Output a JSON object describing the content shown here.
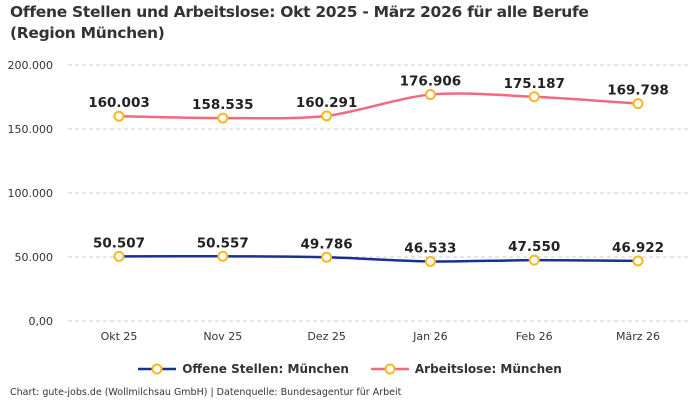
{
  "title": "Offene Stellen und Arbeitslose: Okt 2025 - März 2026 für alle Berufe (Region München)",
  "source": "Chart: gute-jobs.de (Wollmilchsau GmbH) | Datenquelle: Bundesagentur für Arbeit",
  "chart_data": {
    "type": "line",
    "title": "Offene Stellen und Arbeitslose: Okt 2025 - März 2026 für alle Berufe (Region München)",
    "categories": [
      "Okt 25",
      "Nov 25",
      "Dez 25",
      "Jan 26",
      "Feb 26",
      "März 26"
    ],
    "ylim": [
      0,
      200000
    ],
    "yticks": [
      0,
      50000,
      100000,
      150000,
      200000
    ],
    "ytick_labels": [
      "0,00",
      "50.000",
      "100.000",
      "150.000",
      "200.000"
    ],
    "grid": true,
    "legend_position": "bottom",
    "marker_color": "#f5b921",
    "series": [
      {
        "name": "Offene Stellen: München",
        "color": "#1a2f8f",
        "values": [
          50507,
          50557,
          49786,
          46533,
          47550,
          46922
        ],
        "labels": [
          "50.507",
          "50.557",
          "49.786",
          "46.533",
          "47.550",
          "46.922"
        ]
      },
      {
        "name": "Arbeitslose: München",
        "color": "#f2687e",
        "values": [
          160003,
          158535,
          160291,
          176906,
          175187,
          169798
        ],
        "labels": [
          "160.003",
          "158.535",
          "160.291",
          "176.906",
          "175.187",
          "169.798"
        ]
      }
    ]
  }
}
